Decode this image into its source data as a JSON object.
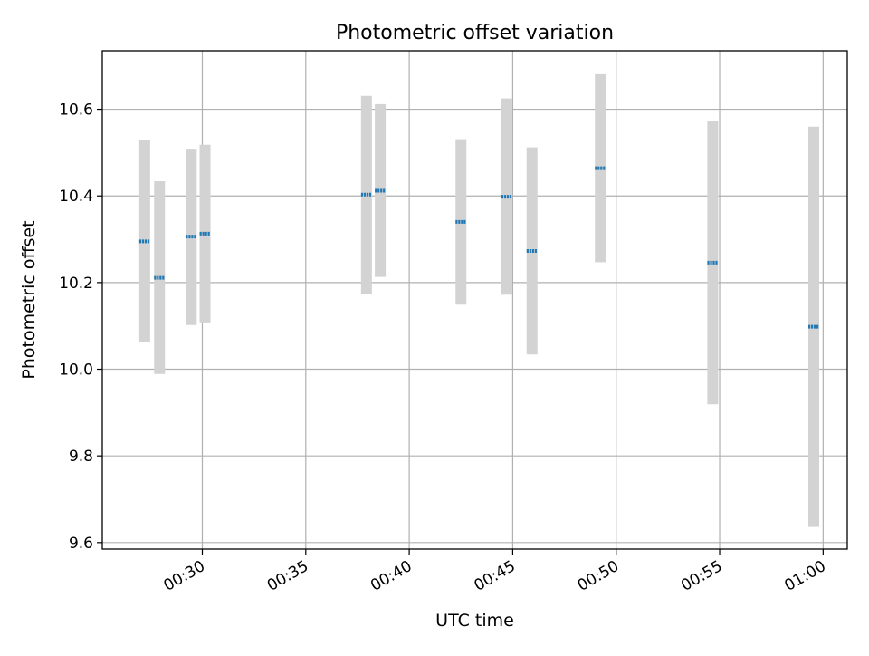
{
  "chart_data": {
    "type": "scatter",
    "title": "Photometric offset variation",
    "xlabel": "UTC time",
    "ylabel": "Photometric offset",
    "xlim": [
      "00:25:10",
      "01:01:10"
    ],
    "ylim": [
      9.585,
      10.735
    ],
    "x_ticks": [
      "00:30",
      "00:35",
      "00:40",
      "00:45",
      "00:50",
      "00:55",
      "01:00"
    ],
    "y_ticks": [
      "9.6",
      "9.8",
      "10.0",
      "10.2",
      "10.4",
      "10.6"
    ],
    "grid": true,
    "points": [
      {
        "time": "00:27:13",
        "value": 10.295,
        "err_low": 10.062,
        "err_high": 10.528
      },
      {
        "time": "00:27:56",
        "value": 10.211,
        "err_low": 9.989,
        "err_high": 10.434
      },
      {
        "time": "00:29:28",
        "value": 10.306,
        "err_low": 10.102,
        "err_high": 10.509
      },
      {
        "time": "00:30:08",
        "value": 10.313,
        "err_low": 10.108,
        "err_high": 10.518
      },
      {
        "time": "00:37:56",
        "value": 10.403,
        "err_low": 10.174,
        "err_high": 10.631
      },
      {
        "time": "00:38:36",
        "value": 10.412,
        "err_low": 10.213,
        "err_high": 10.612
      },
      {
        "time": "00:42:30",
        "value": 10.34,
        "err_low": 10.149,
        "err_high": 10.531
      },
      {
        "time": "00:44:43",
        "value": 10.398,
        "err_low": 10.172,
        "err_high": 10.625
      },
      {
        "time": "00:45:56",
        "value": 10.273,
        "err_low": 10.034,
        "err_high": 10.512
      },
      {
        "time": "00:49:14",
        "value": 10.464,
        "err_low": 10.247,
        "err_high": 10.681
      },
      {
        "time": "00:54:40",
        "value": 10.246,
        "err_low": 9.919,
        "err_high": 10.574
      },
      {
        "time": "00:59:33",
        "value": 10.098,
        "err_low": 9.636,
        "err_high": 10.56
      }
    ],
    "colors": {
      "marker": "#1f77b4",
      "errorbar": "#d3d3d3",
      "grid": "#b0b0b0",
      "frame": "#000000"
    }
  }
}
